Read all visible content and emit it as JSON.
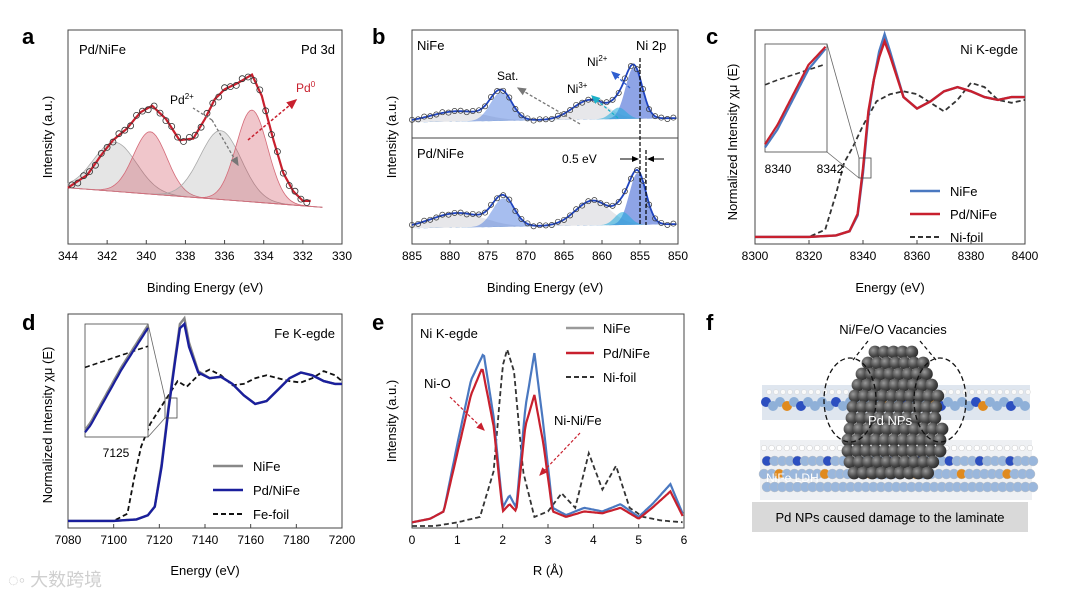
{
  "watermark": "大数跨境",
  "panel_f": {
    "label": "f",
    "title": "Ni/Fe/O Vacancies",
    "np_label": "Pd NPs",
    "ldh_label": "NiFe LDH",
    "caption": "Pd NPs caused damage to the laminate"
  },
  "colors": {
    "nife": "#4a78c0",
    "pdnife": "#c8202e",
    "foil": "#333333",
    "ni_fe_k_nife": "#888888",
    "fe_k_pdnife": "#1a1f9c",
    "pd_red": "#c8202e",
    "ni_blue": "#2f5fd0"
  },
  "chart_data": [
    {
      "id": "a",
      "type": "line",
      "label": "a",
      "title": "Pd 3d",
      "legend_text": "Pd/NiFe",
      "xlabel": "Binding Energy (eV)",
      "ylabel": "Intensity (a.u.)",
      "xlim": [
        344,
        330
      ],
      "ylim": [
        0,
        1
      ],
      "xticks": [
        344,
        342,
        340,
        338,
        336,
        334,
        332,
        330
      ],
      "annotations": [
        {
          "text": "Pd2+"
        },
        {
          "text": "Pd0"
        }
      ],
      "series": [
        {
          "name": "Pd/NiFe",
          "style": "experimental fit",
          "x": [
            344,
            343,
            342.3,
            341.7,
            341,
            340.3,
            339.7,
            339,
            338.3,
            337.6,
            337,
            336.5,
            336,
            335.3,
            334.6,
            334.1,
            333.5,
            333,
            332.5,
            332
          ],
          "y": [
            0.16,
            0.24,
            0.36,
            0.45,
            0.52,
            0.62,
            0.66,
            0.58,
            0.45,
            0.46,
            0.58,
            0.7,
            0.76,
            0.8,
            0.85,
            0.72,
            0.45,
            0.25,
            0.14,
            0.08
          ]
        },
        {
          "name": "Pd2+ 3d3/2",
          "style": "grey peak",
          "center": 341.6,
          "amplitude": 0.3,
          "width": 1.1
        },
        {
          "name": "Pd0 3d3/2",
          "style": "red peak",
          "center": 339.8,
          "amplitude": 0.38,
          "width": 0.85
        },
        {
          "name": "Pd2+ 3d5/2",
          "style": "grey peak",
          "center": 336.2,
          "amplitude": 0.42,
          "width": 1.05
        },
        {
          "name": "Pd0 3d5/2",
          "style": "red peak",
          "center": 334.6,
          "amplitude": 0.56,
          "width": 0.8
        }
      ]
    },
    {
      "id": "b",
      "type": "line",
      "label": "b",
      "xlabel": "Binding Energy (eV)",
      "ylabel": "Intensity (a.u.)",
      "xlim": [
        885,
        850
      ],
      "ylim": [
        0,
        1
      ],
      "xticks": [
        885,
        880,
        875,
        870,
        865,
        860,
        855,
        850
      ],
      "subpanels": [
        {
          "name": "NiFe",
          "annotations": [
            {
              "text": "Sat."
            },
            {
              "text": "Ni3+"
            },
            {
              "text": "Ni2+"
            },
            {
              "text": "Ni 2p"
            }
          ],
          "peaks": [
            {
              "c": 879,
              "a": 0.2,
              "w": 3.5
            },
            {
              "c": 873.3,
              "a": 0.55,
              "w": 1.4
            },
            {
              "c": 861.5,
              "a": 0.38,
              "w": 2.3
            },
            {
              "c": 855.8,
              "a": 1.0,
              "w": 1.1
            },
            {
              "c": 857.8,
              "a": 0.22,
              "w": 1.0
            }
          ]
        },
        {
          "name": "Pd/NiFe",
          "shift_text": "0.5 eV",
          "peaks": [
            {
              "c": 879,
              "a": 0.28,
              "w": 3.5
            },
            {
              "c": 873,
              "a": 0.55,
              "w": 1.4
            },
            {
              "c": 861.2,
              "a": 0.48,
              "w": 2.3
            },
            {
              "c": 855.3,
              "a": 1.0,
              "w": 1.1
            },
            {
              "c": 857.3,
              "a": 0.25,
              "w": 1.0
            }
          ]
        }
      ]
    },
    {
      "id": "c",
      "type": "line",
      "label": "c",
      "title": "Ni K-egde",
      "xlabel": "Energy (eV)",
      "ylabel": "Normalized Intensity χμ (E)",
      "xlim": [
        8300,
        8400
      ],
      "ylim": [
        -0.05,
        1.45
      ],
      "xticks": [
        8300,
        8320,
        8340,
        8360,
        8380,
        8400
      ],
      "inset": {
        "xticks": [
          8340,
          8342
        ]
      },
      "legend": [
        "NiFe",
        "Pd/NiFe",
        "Ni-foil"
      ],
      "series": [
        {
          "name": "NiFe",
          "x": [
            8300,
            8320,
            8330,
            8335,
            8338,
            8340,
            8342,
            8344,
            8346,
            8348,
            8350,
            8355,
            8360,
            8365,
            8370,
            8375,
            8380,
            8385,
            8390,
            8395,
            8400
          ],
          "y": [
            0.0,
            0.0,
            0.01,
            0.04,
            0.15,
            0.45,
            0.85,
            1.1,
            1.3,
            1.42,
            1.3,
            0.98,
            0.9,
            0.95,
            1.02,
            1.05,
            1.02,
            0.98,
            0.96,
            0.98,
            0.98
          ]
        },
        {
          "name": "Pd/NiFe",
          "x": [
            8300,
            8320,
            8330,
            8335,
            8338,
            8340,
            8342,
            8344,
            8346,
            8348,
            8350,
            8355,
            8360,
            8365,
            8370,
            8375,
            8380,
            8385,
            8390,
            8395,
            8400
          ],
          "y": [
            0.0,
            0.0,
            0.01,
            0.04,
            0.16,
            0.48,
            0.88,
            1.1,
            1.26,
            1.37,
            1.27,
            0.98,
            0.9,
            0.95,
            1.02,
            1.05,
            1.02,
            0.98,
            0.96,
            0.98,
            0.98
          ]
        },
        {
          "name": "Ni-foil",
          "x": [
            8300,
            8320,
            8326,
            8330,
            8333,
            8336,
            8340,
            8345,
            8350,
            8355,
            8360,
            8365,
            8370,
            8375,
            8380,
            8385,
            8390,
            8395,
            8400
          ],
          "y": [
            0.0,
            0.0,
            0.05,
            0.3,
            0.52,
            0.62,
            0.78,
            0.95,
            1.0,
            1.02,
            1.0,
            0.94,
            0.88,
            0.96,
            1.08,
            1.05,
            0.96,
            0.94,
            0.96
          ]
        }
      ]
    },
    {
      "id": "d",
      "type": "line",
      "label": "d",
      "title": "Fe K-egde",
      "xlabel": "Energy (eV)",
      "ylabel": "Normalized Intensity χμ (E)",
      "xlim": [
        7080,
        7200
      ],
      "ylim": [
        -0.05,
        1.45
      ],
      "xticks": [
        7080,
        7100,
        7120,
        7140,
        7160,
        7180,
        7200
      ],
      "inset": {
        "xticks": [
          7125
        ]
      },
      "legend": [
        "NiFe",
        "Pd/NiFe",
        "Fe-foil"
      ],
      "series": [
        {
          "name": "NiFe",
          "x": [
            7080,
            7100,
            7110,
            7115,
            7118,
            7121,
            7124,
            7127,
            7129,
            7131,
            7133,
            7137,
            7142,
            7147,
            7152,
            7157,
            7162,
            7167,
            7172,
            7177,
            7182,
            7187,
            7192,
            7197,
            7200
          ],
          "y": [
            0.0,
            0.0,
            0.01,
            0.04,
            0.1,
            0.4,
            0.8,
            1.15,
            1.38,
            1.42,
            1.25,
            1.05,
            1.0,
            1.01,
            0.96,
            0.88,
            0.82,
            0.84,
            0.92,
            1.0,
            1.04,
            1.02,
            0.98,
            0.96,
            0.96
          ]
        },
        {
          "name": "Pd/NiFe",
          "x": [
            7080,
            7100,
            7110,
            7115,
            7118,
            7121,
            7124,
            7127,
            7129,
            7131,
            7133,
            7137,
            7142,
            7147,
            7152,
            7157,
            7162,
            7167,
            7172,
            7177,
            7182,
            7187,
            7192,
            7197,
            7200
          ],
          "y": [
            0.0,
            0.0,
            0.01,
            0.04,
            0.1,
            0.38,
            0.78,
            1.13,
            1.35,
            1.38,
            1.22,
            1.04,
            1.0,
            1.01,
            0.96,
            0.88,
            0.82,
            0.84,
            0.92,
            1.0,
            1.04,
            1.02,
            0.98,
            0.96,
            0.96
          ]
        },
        {
          "name": "Fe-foil",
          "x": [
            7080,
            7100,
            7106,
            7109,
            7112,
            7116,
            7120,
            7124,
            7128,
            7132,
            7137,
            7142,
            7147,
            7152,
            7157,
            7162,
            7167,
            7172,
            7177,
            7182,
            7187,
            7192,
            7197,
            7200
          ],
          "y": [
            0.0,
            0.0,
            0.05,
            0.3,
            0.52,
            0.68,
            0.78,
            0.88,
            0.98,
            0.94,
            1.02,
            1.06,
            1.02,
            0.95,
            0.96,
            1.0,
            1.02,
            1.0,
            0.98,
            0.97,
            1.0,
            1.05,
            1.02,
            0.98
          ]
        }
      ]
    },
    {
      "id": "e",
      "type": "line",
      "label": "e",
      "title": "Ni K-egde",
      "xlabel": "R (Å)",
      "ylabel": "Intensity (a.u.)",
      "xlim": [
        0,
        6
      ],
      "ylim": [
        0,
        1
      ],
      "xticks": [
        0,
        1,
        2,
        3,
        4,
        5,
        6
      ],
      "legend": [
        "NiFe",
        "Pd/NiFe",
        "Ni-foil"
      ],
      "annotations": [
        {
          "text": "Ni-O"
        },
        {
          "text": "Ni-Ni/Fe"
        }
      ],
      "series": [
        {
          "name": "NiFe",
          "x": [
            0,
            0.4,
            0.7,
            1.0,
            1.3,
            1.58,
            1.8,
            2.0,
            2.15,
            2.3,
            2.5,
            2.7,
            2.9,
            3.1,
            3.4,
            3.8,
            4.2,
            4.6,
            5.0,
            5.3,
            5.7,
            6.0
          ],
          "y": [
            0.02,
            0.04,
            0.08,
            0.45,
            0.8,
            0.95,
            0.6,
            0.1,
            0.17,
            0.1,
            0.65,
            0.95,
            0.55,
            0.1,
            0.06,
            0.1,
            0.08,
            0.12,
            0.05,
            0.12,
            0.23,
            0.05
          ]
        },
        {
          "name": "Pd/NiFe",
          "x": [
            0,
            0.4,
            0.7,
            1.0,
            1.3,
            1.55,
            1.8,
            2.0,
            2.15,
            2.3,
            2.5,
            2.7,
            2.9,
            3.1,
            3.4,
            3.8,
            4.2,
            4.6,
            5.0,
            5.3,
            5.7,
            6.0
          ],
          "y": [
            0.02,
            0.04,
            0.08,
            0.4,
            0.72,
            0.87,
            0.55,
            0.08,
            0.12,
            0.08,
            0.55,
            0.72,
            0.45,
            0.08,
            0.05,
            0.08,
            0.07,
            0.1,
            0.04,
            0.1,
            0.19,
            0.04
          ]
        },
        {
          "name": "Ni-foil",
          "x": [
            0,
            0.5,
            1.0,
            1.5,
            1.8,
            2.0,
            2.1,
            2.25,
            2.45,
            2.7,
            3.0,
            3.3,
            3.6,
            3.9,
            4.2,
            4.5,
            4.8,
            5.1,
            5.5,
            6.0
          ],
          "y": [
            0.0,
            0.0,
            0.02,
            0.05,
            0.3,
            0.88,
            0.97,
            0.85,
            0.3,
            0.05,
            0.08,
            0.18,
            0.1,
            0.4,
            0.2,
            0.33,
            0.1,
            0.05,
            0.03,
            0.02
          ]
        }
      ]
    }
  ]
}
